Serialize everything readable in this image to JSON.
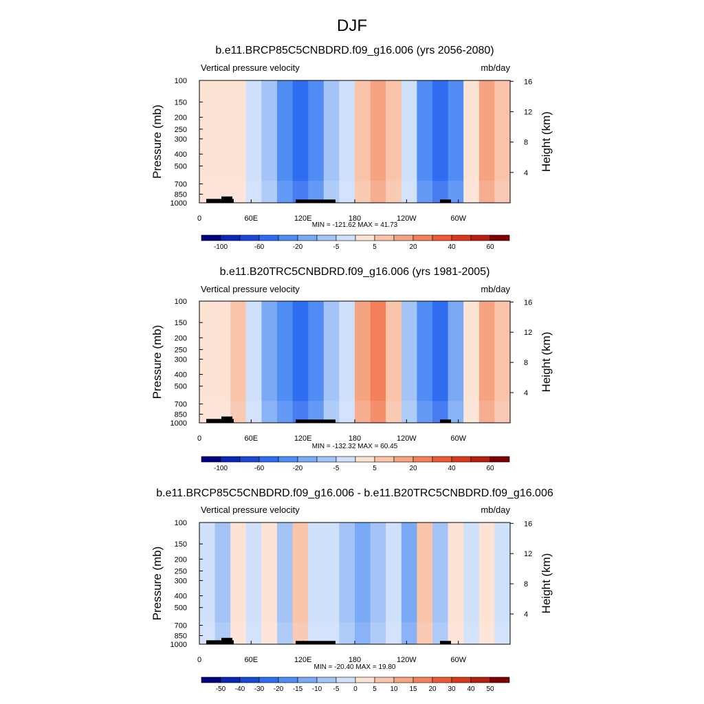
{
  "figure": {
    "title": "DJF"
  },
  "colors": {
    "levels": [
      "#00007f",
      "#0a26b4",
      "#1a48d6",
      "#2e6cf0",
      "#4f8df4",
      "#7aa9f6",
      "#a4c4f8",
      "#cfe0fb",
      "#fde3d4",
      "#f9c4aa",
      "#f6a381",
      "#f38058",
      "#ee5a35",
      "#d8391a",
      "#b51f10",
      "#7f0000"
    ],
    "panel_a": [
      "#fde3d4",
      "#fde3d4",
      "#fde3d4",
      "#cfe0fb",
      "#a4c4f8",
      "#4f8df4",
      "#2e6cf0",
      "#4f8df4",
      "#a4c4f8",
      "#cfe0fb",
      "#f9c4aa",
      "#f6a381",
      "#f9c4aa",
      "#cfe0fb",
      "#4f8df4",
      "#2e6cf0",
      "#4f8df4",
      "#fde3d4",
      "#f6a381",
      "#f9c4aa"
    ],
    "panel_b": [
      "#fde3d4",
      "#fde3d4",
      "#f9c4aa",
      "#cfe0fb",
      "#7aa9f6",
      "#4f8df4",
      "#2e6cf0",
      "#4f8df4",
      "#a4c4f8",
      "#cfe0fb",
      "#f6a381",
      "#f38058",
      "#f9c4aa",
      "#a4c4f8",
      "#4f8df4",
      "#2e6cf0",
      "#7aa9f6",
      "#fde3d4",
      "#f6a381",
      "#f9c4aa"
    ],
    "panel_c": [
      "#cfe0fb",
      "#a4c4f8",
      "#fde3d4",
      "#cfe0fb",
      "#fde3d4",
      "#a4c4f8",
      "#f9c4aa",
      "#cfe0fb",
      "#cfe0fb",
      "#a4c4f8",
      "#7aa9f6",
      "#a4c4f8",
      "#cfe0fb",
      "#7aa9f6",
      "#f9c4aa",
      "#a4c4f8",
      "#fde3d4",
      "#cfe0fb",
      "#fde3d4",
      "#cfe0fb"
    ]
  },
  "chart_data": [
    {
      "type": "heatmap",
      "title": "b.e11.BRCP85C5CNBDRD.f09_g16.006 (yrs 2056-2080)",
      "left_label": "Vertical pressure velocity",
      "right_label": "mb/day",
      "ylabel": "Pressure (mb)",
      "y2label": "Height (km)",
      "y_ticks": [
        "100",
        "150",
        "200",
        "250",
        "300",
        "400",
        "500",
        "700",
        "850",
        "1000"
      ],
      "y_tick_values": [
        100,
        150,
        200,
        250,
        300,
        400,
        500,
        700,
        850,
        1000
      ],
      "y2_ticks": [
        "16",
        "12",
        "8",
        "4"
      ],
      "y2_tick_values": [
        16,
        12,
        8,
        4
      ],
      "x_ticks": [
        "0",
        "60E",
        "120E",
        "180",
        "120W",
        "60W"
      ],
      "x_tick_values": [
        0,
        60,
        120,
        180,
        240,
        300
      ],
      "xlim": [
        0,
        360
      ],
      "ylim": [
        1000,
        100
      ],
      "stats": "MIN = -121.62  MAX =  41.73",
      "colorbar_labels": [
        "-100",
        "-60",
        "-20",
        "-5",
        "5",
        "20",
        "40",
        "60"
      ],
      "colorbar_label_slots": [
        1,
        3,
        5,
        7,
        9,
        11,
        13,
        15
      ],
      "colorbar_bins": 16
    },
    {
      "type": "heatmap",
      "title": "b.e11.B20TRC5CNBDRD.f09_g16.006 (yrs 1981-2005)",
      "left_label": "Vertical pressure velocity",
      "right_label": "mb/day",
      "ylabel": "Pressure (mb)",
      "y2label": "Height (km)",
      "y_ticks": [
        "100",
        "150",
        "200",
        "250",
        "300",
        "400",
        "500",
        "700",
        "850",
        "1000"
      ],
      "y_tick_values": [
        100,
        150,
        200,
        250,
        300,
        400,
        500,
        700,
        850,
        1000
      ],
      "y2_ticks": [
        "16",
        "12",
        "8",
        "4"
      ],
      "y2_tick_values": [
        16,
        12,
        8,
        4
      ],
      "x_ticks": [
        "0",
        "60E",
        "120E",
        "180",
        "120W",
        "60W"
      ],
      "x_tick_values": [
        0,
        60,
        120,
        180,
        240,
        300
      ],
      "xlim": [
        0,
        360
      ],
      "ylim": [
        1000,
        100
      ],
      "stats": "MIN = -132.32  MAX =  60.45",
      "colorbar_labels": [
        "-100",
        "-60",
        "-20",
        "-5",
        "5",
        "20",
        "40",
        "60"
      ],
      "colorbar_label_slots": [
        1,
        3,
        5,
        7,
        9,
        11,
        13,
        15
      ],
      "colorbar_bins": 16
    },
    {
      "type": "heatmap",
      "title": "b.e11.BRCP85C5CNBDRD.f09_g16.006 - b.e11.B20TRC5CNBDRD.f09_g16.006",
      "left_label": "Vertical pressure velocity",
      "right_label": "mb/day",
      "ylabel": "Pressure (mb)",
      "y2label": "Height (km)",
      "y_ticks": [
        "100",
        "150",
        "200",
        "250",
        "300",
        "400",
        "500",
        "700",
        "850",
        "1000"
      ],
      "y_tick_values": [
        100,
        150,
        200,
        250,
        300,
        400,
        500,
        700,
        850,
        1000
      ],
      "y2_ticks": [
        "16",
        "12",
        "8",
        "4"
      ],
      "y2_tick_values": [
        16,
        12,
        8,
        4
      ],
      "x_ticks": [
        "0",
        "60E",
        "120E",
        "180",
        "120W",
        "60W"
      ],
      "x_tick_values": [
        0,
        60,
        120,
        180,
        240,
        300
      ],
      "xlim": [
        0,
        360
      ],
      "ylim": [
        1000,
        100
      ],
      "stats": "MIN = -20.40  MAX =  19.80",
      "colorbar_labels": [
        "-50",
        "-40",
        "-30",
        "-20",
        "-15",
        "-10",
        "-5",
        "0",
        "5",
        "10",
        "15",
        "20",
        "30",
        "40",
        "50"
      ],
      "colorbar_label_slots": [
        1,
        2,
        3,
        4,
        5,
        6,
        7,
        8,
        9,
        10,
        11,
        12,
        13,
        14,
        15
      ],
      "colorbar_bins": 16
    }
  ]
}
